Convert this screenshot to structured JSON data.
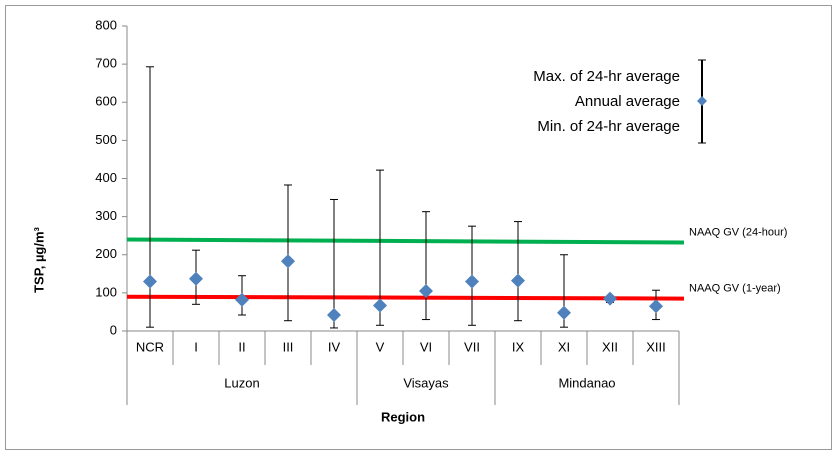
{
  "chart_data": {
    "type": "errorbar",
    "ylabel": "TSP, µg/m³",
    "xlabel": "Region",
    "categories": [
      "NCR",
      "I",
      "II",
      "III",
      "IV",
      "V",
      "VI",
      "VII",
      "IX",
      "XI",
      "XII",
      "XIII"
    ],
    "groups": [
      {
        "name": "Luzon",
        "span": 5
      },
      {
        "name": "Visayas",
        "span": 3
      },
      {
        "name": "Mindanao",
        "span": 4
      }
    ],
    "series": [
      {
        "name": "Annual average",
        "color": "#4f81bd",
        "values": [
          130,
          137,
          82,
          183,
          42,
          67,
          105,
          130,
          132,
          48,
          85,
          65
        ]
      },
      {
        "name": "Max. of 24-hr average",
        "color": "#000000",
        "values": [
          693,
          212,
          145,
          383,
          345,
          422,
          313,
          275,
          287,
          200,
          90,
          107
        ]
      },
      {
        "name": "Min. of 24-hr average",
        "color": "#000000",
        "values": [
          10,
          70,
          42,
          27,
          8,
          15,
          30,
          15,
          27,
          10,
          75,
          30
        ]
      }
    ],
    "lines": [
      {
        "name": "NAAQ GV (24-hour)",
        "color": "#00b050",
        "values": [
          240,
          232
        ]
      },
      {
        "name": "NAAQ GV (1-year)",
        "color": "#ff0000",
        "values": [
          90,
          85
        ]
      }
    ],
    "ylim": [
      0,
      800
    ],
    "yticks": [
      0,
      100,
      200,
      300,
      400,
      500,
      600,
      700,
      800
    ]
  }
}
